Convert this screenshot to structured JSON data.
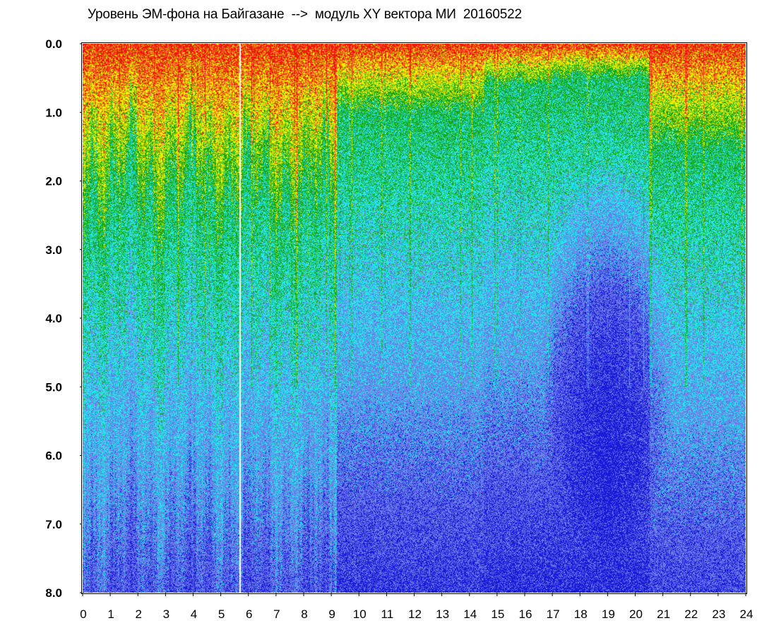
{
  "chart_data": {
    "type": "heatmap",
    "title": "Уровень ЭМ-фона на Байгазане  -->  модуль XY вектора МИ  20160522",
    "xlabel": "",
    "ylabel": "",
    "xlim": [
      0,
      24
    ],
    "ylim": [
      8.0,
      0.0
    ],
    "y_inverted": true,
    "x_ticks": [
      "0",
      "1",
      "2",
      "3",
      "4",
      "5",
      "6",
      "7",
      "8",
      "9",
      "10",
      "11",
      "12",
      "13",
      "14",
      "15",
      "16",
      "17",
      "18",
      "19",
      "20",
      "21",
      "22",
      "23",
      "24"
    ],
    "y_ticks": [
      "0.0",
      "1.0",
      "2.0",
      "3.0",
      "4.0",
      "5.0",
      "6.0",
      "7.0",
      "8.0"
    ],
    "colormap": [
      "#1a1ad8",
      "#6a7ae8",
      "#29e3e8",
      "#1aa81a",
      "#f0f000",
      "#f01a0a"
    ],
    "grid": false,
    "legend": "none",
    "description_bands": [
      {
        "x_range": [
          0,
          9.2
        ],
        "intense_to": 2.2,
        "streaky": true
      },
      {
        "x_range": [
          9.2,
          14.5
        ],
        "intense_to": 1.0,
        "streaky": false
      },
      {
        "x_range": [
          14.5,
          17
        ],
        "intense_to": 0.6,
        "streaky": false
      },
      {
        "x_range": [
          17,
          20.5
        ],
        "intense_to": 0.5,
        "streaky": false
      },
      {
        "x_range": [
          20.5,
          24
        ],
        "intense_to": 1.5,
        "streaky": false
      }
    ]
  }
}
